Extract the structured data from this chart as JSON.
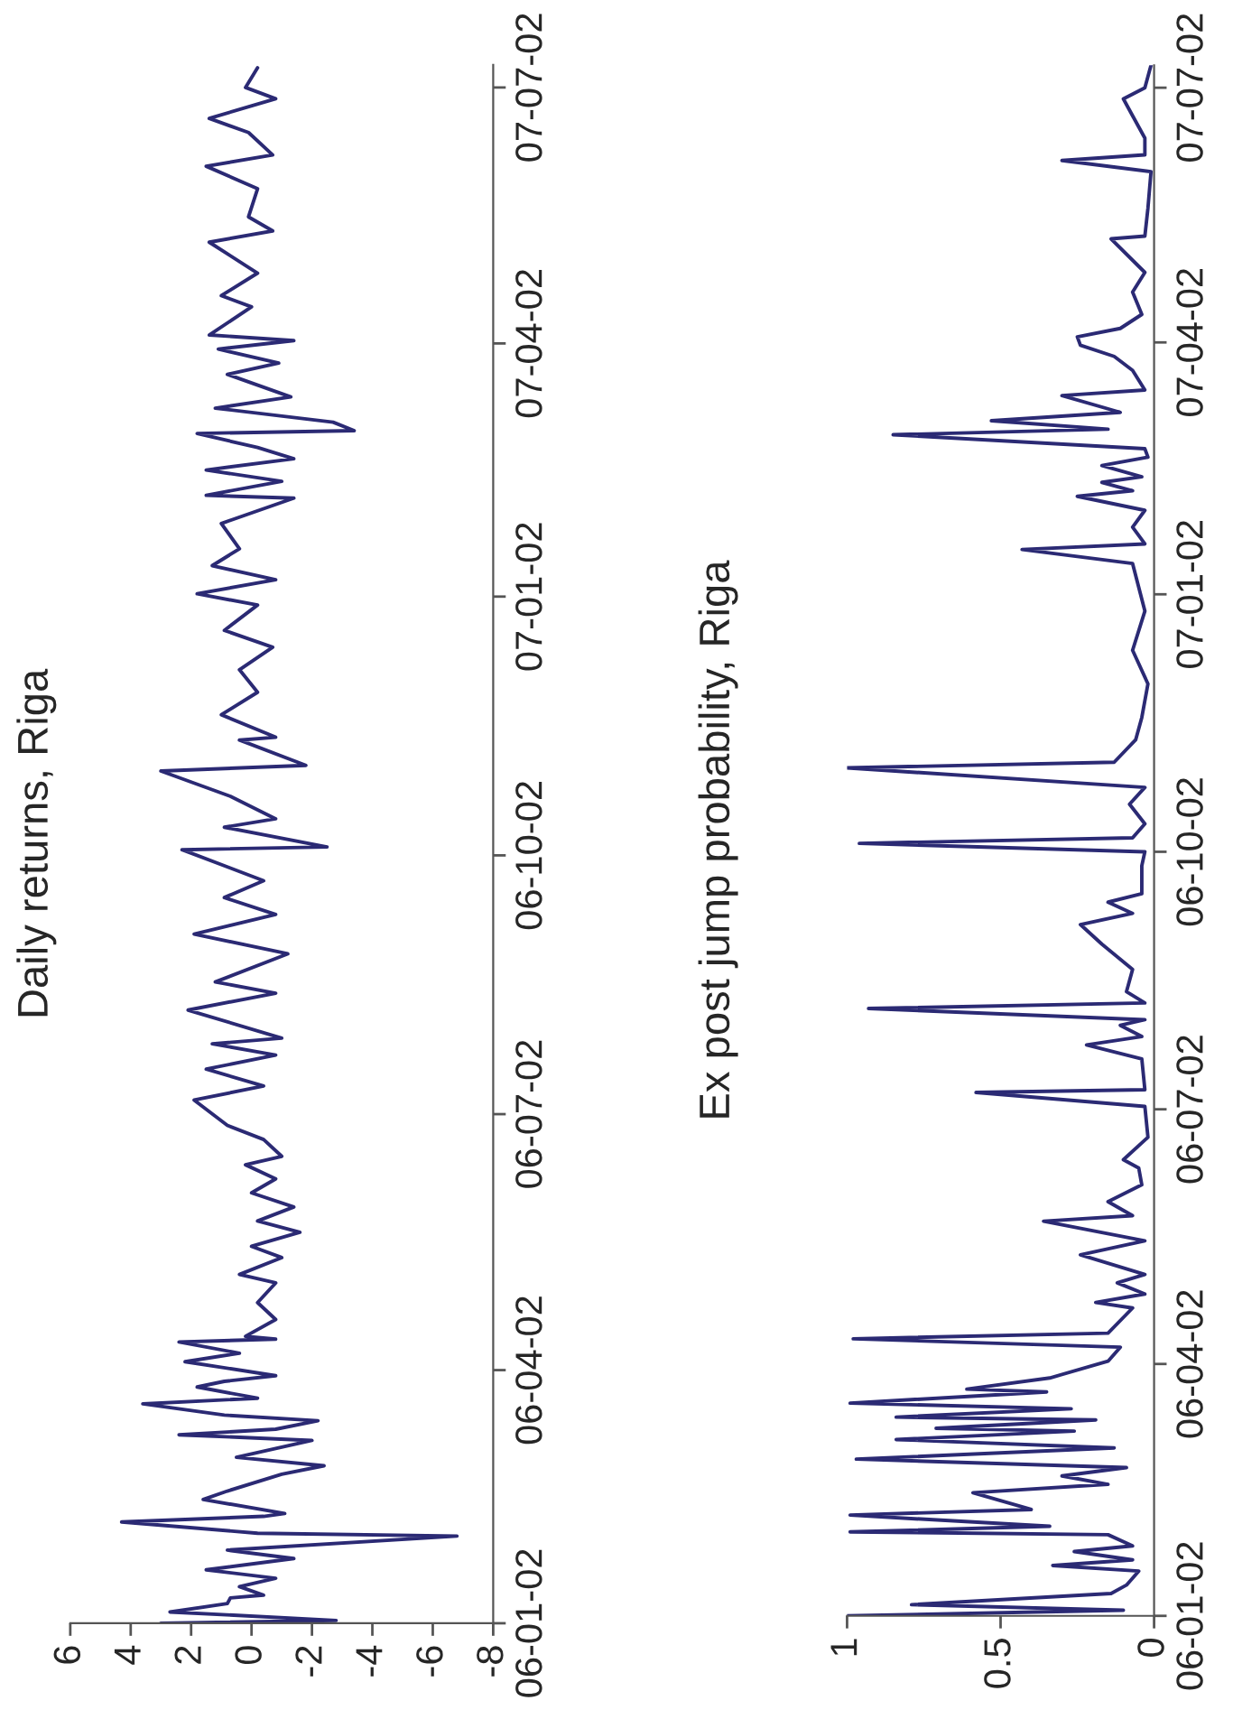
{
  "chart_data": [
    {
      "type": "line",
      "title": "Daily returns, Riga",
      "orientation": "horizontal",
      "xlim": [
        6,
        -8
      ],
      "xticks": [
        6,
        4,
        2,
        0,
        -2,
        -4,
        -6,
        -8
      ],
      "ylim": [
        "2006-01-02",
        "2007-07-10"
      ],
      "yticks": [
        {
          "value": "2006-01-02",
          "label": "06-01-02"
        },
        {
          "value": "2006-04-02",
          "label": "06-04-02"
        },
        {
          "value": "2006-07-02",
          "label": "06-07-02"
        },
        {
          "value": "2006-10-02",
          "label": "06-10-02"
        },
        {
          "value": "2007-01-02",
          "label": "07-01-02"
        },
        {
          "value": "2007-04-02",
          "label": "07-04-02"
        },
        {
          "value": "2007-07-02",
          "label": "07-07-02"
        }
      ],
      "series": [
        {
          "color": "#2b2a74",
          "x": [
            "2006-01-02",
            "2006-01-03",
            "2006-01-06",
            "2006-01-09",
            "2006-01-11",
            "2006-01-12",
            "2006-01-15",
            "2006-01-18",
            "2006-01-21",
            "2006-01-25",
            "2006-01-28",
            "2006-02-02",
            "2006-02-03",
            "2006-02-07",
            "2006-02-09",
            "2006-02-10",
            "2006-02-15",
            "2006-02-18",
            "2006-02-24",
            "2006-02-27",
            "2006-03-02",
            "2006-03-08",
            "2006-03-10",
            "2006-03-12",
            "2006-03-15",
            "2006-03-17",
            "2006-03-21",
            "2006-03-23",
            "2006-03-27",
            "2006-03-29",
            "2006-03-31",
            "2006-04-05",
            "2006-04-08",
            "2006-04-12",
            "2006-04-13",
            "2006-04-14",
            "2006-04-20",
            "2006-04-26",
            "2006-05-03",
            "2006-05-06",
            "2006-05-12",
            "2006-05-16",
            "2006-05-21",
            "2006-05-25",
            "2006-05-30",
            "2006-06-04",
            "2006-06-09",
            "2006-06-14",
            "2006-06-17",
            "2006-06-23",
            "2006-06-28",
            "2006-07-07",
            "2006-07-12",
            "2006-07-18",
            "2006-07-23",
            "2006-07-27",
            "2006-07-29",
            "2006-08-08",
            "2006-08-14",
            "2006-08-18",
            "2006-08-28",
            "2006-09-04",
            "2006-09-11",
            "2006-09-17",
            "2006-09-23",
            "2006-10-04",
            "2006-10-05",
            "2006-10-12",
            "2006-10-15",
            "2006-10-23",
            "2006-11-01",
            "2006-11-03",
            "2006-11-12",
            "2006-11-13",
            "2006-11-21",
            "2006-11-29",
            "2006-12-07",
            "2006-12-15",
            "2006-12-21",
            "2006-12-30",
            "2007-01-03",
            "2007-01-08",
            "2007-01-13",
            "2007-01-19",
            "2007-01-28",
            "2007-02-06",
            "2007-02-07",
            "2007-02-12",
            "2007-02-16",
            "2007-02-20",
            "2007-02-24",
            "2007-03-01",
            "2007-03-02",
            "2007-03-05",
            "2007-03-10",
            "2007-03-14",
            "2007-03-22",
            "2007-03-26",
            "2007-03-31",
            "2007-04-03",
            "2007-04-05",
            "2007-04-15",
            "2007-04-19",
            "2007-04-27",
            "2007-05-08",
            "2007-05-12",
            "2007-05-17",
            "2007-05-27",
            "2007-06-04",
            "2007-06-08",
            "2007-06-16",
            "2007-06-21",
            "2007-06-28",
            "2007-07-02",
            "2007-07-09"
          ],
          "values": [
            3.0,
            -2.8,
            2.7,
            0.8,
            0.7,
            -0.4,
            0.4,
            -0.8,
            1.5,
            -1.4,
            0.8,
            -6.8,
            -0.2,
            4.3,
            -0.4,
            -1.1,
            1.6,
            0.8,
            -1.0,
            -2.4,
            0.5,
            -2.0,
            2.4,
            -0.8,
            -2.2,
            0.9,
            3.6,
            -0.2,
            1.8,
            0.9,
            -0.8,
            2.2,
            0.4,
            2.4,
            -0.8,
            0.2,
            -0.8,
            -0.2,
            -0.8,
            0.4,
            -1.0,
            0.0,
            -1.6,
            -0.2,
            -1.4,
            0.0,
            -0.8,
            0.2,
            -1.0,
            -0.4,
            0.8,
            1.9,
            -0.4,
            1.5,
            -0.8,
            1.3,
            -1.0,
            2.1,
            -0.8,
            1.2,
            -1.2,
            1.9,
            -0.8,
            0.9,
            -0.4,
            2.3,
            -2.5,
            0.9,
            -0.8,
            0.7,
            3.0,
            -1.8,
            0.4,
            -0.8,
            1.0,
            -0.2,
            0.4,
            -0.7,
            0.9,
            -0.2,
            1.8,
            -0.8,
            1.3,
            0.4,
            1.0,
            -1.4,
            1.5,
            -1.0,
            1.5,
            -1.4,
            -0.2,
            1.8,
            -3.4,
            -2.7,
            1.2,
            -1.3,
            0.8,
            -0.9,
            1.1,
            -1.4,
            1.4,
            0.0,
            1.0,
            -0.2,
            1.4,
            -0.7,
            0.1,
            -0.2,
            1.5,
            -0.7,
            0.1,
            1.4,
            -0.8,
            0.2,
            -0.2
          ]
        }
      ]
    },
    {
      "type": "line",
      "title": "Ex post jump probability, Riga",
      "orientation": "horizontal",
      "xlim": [
        1,
        0
      ],
      "xticks": [
        1,
        0.5,
        0
      ],
      "ylim": [
        "2006-01-02",
        "2007-07-10"
      ],
      "yticks": [
        {
          "value": "2006-01-02",
          "label": "06-01-02"
        },
        {
          "value": "2006-04-02",
          "label": "06-04-02"
        },
        {
          "value": "2006-07-02",
          "label": "06-07-02"
        },
        {
          "value": "2006-10-02",
          "label": "06-10-02"
        },
        {
          "value": "2007-01-02",
          "label": "07-01-02"
        },
        {
          "value": "2007-04-02",
          "label": "07-04-02"
        },
        {
          "value": "2007-07-02",
          "label": "07-07-02"
        }
      ],
      "series": [
        {
          "color": "#2b2a74",
          "x": [
            "2006-01-02",
            "2006-01-04",
            "2006-01-06",
            "2006-01-10",
            "2006-01-13",
            "2006-01-18",
            "2006-01-20",
            "2006-01-22",
            "2006-01-25",
            "2006-01-27",
            "2006-01-31",
            "2006-02-01",
            "2006-02-03",
            "2006-02-07",
            "2006-02-09",
            "2006-02-15",
            "2006-02-18",
            "2006-02-21",
            "2006-02-24",
            "2006-02-27",
            "2006-03-03",
            "2006-03-06",
            "2006-03-09",
            "2006-03-10",
            "2006-03-13",
            "2006-03-14",
            "2006-03-17",
            "2006-03-19",
            "2006-03-23",
            "2006-03-24",
            "2006-03-28",
            "2006-04-03",
            "2006-04-08",
            "2006-04-11",
            "2006-04-13",
            "2006-04-22",
            "2006-04-24",
            "2006-04-27",
            "2006-05-01",
            "2006-05-04",
            "2006-05-11",
            "2006-05-16",
            "2006-05-23",
            "2006-05-25",
            "2006-05-30",
            "2006-06-05",
            "2006-06-11",
            "2006-06-14",
            "2006-06-22",
            "2006-07-03",
            "2006-07-08",
            "2006-07-09",
            "2006-07-20",
            "2006-07-25",
            "2006-07-28",
            "2006-08-01",
            "2006-08-03",
            "2006-08-07",
            "2006-08-09",
            "2006-08-13",
            "2006-08-21",
            "2006-08-30",
            "2006-09-06",
            "2006-09-10",
            "2006-09-14",
            "2006-09-17",
            "2006-09-27",
            "2006-10-02",
            "2006-10-05",
            "2006-10-07",
            "2006-10-12",
            "2006-10-19",
            "2006-10-25",
            "2006-11-01",
            "2006-11-03",
            "2006-11-11",
            "2006-11-19",
            "2006-12-01",
            "2006-12-13",
            "2006-12-27",
            "2007-01-13",
            "2007-01-18",
            "2007-01-20",
            "2007-01-26",
            "2007-02-01",
            "2007-02-06",
            "2007-02-08",
            "2007-02-11",
            "2007-02-13",
            "2007-02-17",
            "2007-02-20",
            "2007-02-23",
            "2007-02-28",
            "2007-03-02",
            "2007-03-05",
            "2007-03-08",
            "2007-03-14",
            "2007-03-16",
            "2007-03-23",
            "2007-03-28",
            "2007-04-01",
            "2007-04-04",
            "2007-04-07",
            "2007-04-12",
            "2007-04-20",
            "2007-04-27",
            "2007-05-09",
            "2007-05-10",
            "2007-05-20",
            "2007-06-02",
            "2007-06-06",
            "2007-06-08",
            "2007-06-14",
            "2007-06-24",
            "2007-06-28",
            "2007-07-02",
            "2007-07-10"
          ],
          "values": [
            1.0,
            0.1,
            0.79,
            0.14,
            0.09,
            0.05,
            0.33,
            0.07,
            0.26,
            0.07,
            0.15,
            0.99,
            0.34,
            0.99,
            0.4,
            0.59,
            0.15,
            0.3,
            0.09,
            0.97,
            0.13,
            0.84,
            0.26,
            0.71,
            0.19,
            0.84,
            0.27,
            0.99,
            0.35,
            0.61,
            0.34,
            0.15,
            0.11,
            0.98,
            0.15,
            0.07,
            0.19,
            0.03,
            0.12,
            0.03,
            0.24,
            0.03,
            0.36,
            0.07,
            0.15,
            0.04,
            0.05,
            0.1,
            0.02,
            0.03,
            0.58,
            0.03,
            0.04,
            0.22,
            0.04,
            0.11,
            0.03,
            0.93,
            0.03,
            0.09,
            0.07,
            0.17,
            0.24,
            0.07,
            0.15,
            0.04,
            0.04,
            0.03,
            0.96,
            0.07,
            0.03,
            0.08,
            0.03,
            1.0,
            0.13,
            0.06,
            0.04,
            0.02,
            0.07,
            0.03,
            0.07,
            0.43,
            0.03,
            0.07,
            0.03,
            0.25,
            0.07,
            0.17,
            0.04,
            0.17,
            0.02,
            0.03,
            0.85,
            0.15,
            0.53,
            0.11,
            0.3,
            0.03,
            0.07,
            0.13,
            0.24,
            0.25,
            0.11,
            0.04,
            0.07,
            0.03,
            0.14,
            0.03,
            0.02,
            0.01,
            0.3,
            0.03,
            0.03,
            0.08,
            0.1,
            0.03,
            0.01
          ]
        }
      ]
    }
  ]
}
